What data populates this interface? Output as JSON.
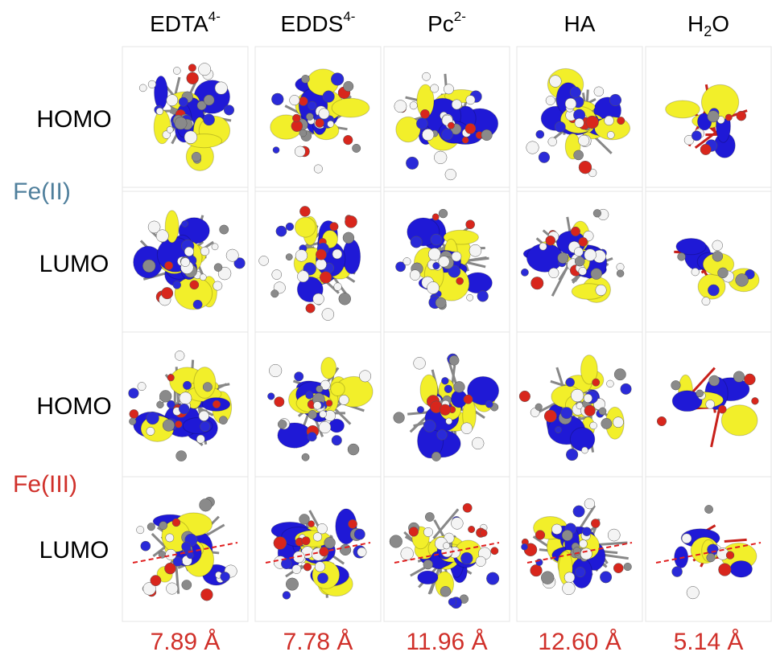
{
  "columns": [
    {
      "text": "EDTA",
      "sup": "4-"
    },
    {
      "text": "EDDS",
      "sup": "4-"
    },
    {
      "text": "Pc",
      "sup": "2-"
    },
    {
      "text": "HA"
    },
    {
      "text": "H",
      "sub": "2",
      "after": "O"
    }
  ],
  "rows": [
    "HOMO",
    "LUMO",
    "HOMO",
    "LUMO"
  ],
  "groups": [
    "Fe(II)",
    "Fe(III)"
  ],
  "distances": [
    "7.89 Å",
    "7.78 Å",
    "11.96 Å",
    "12.60 Å",
    "5.14 Å"
  ]
}
